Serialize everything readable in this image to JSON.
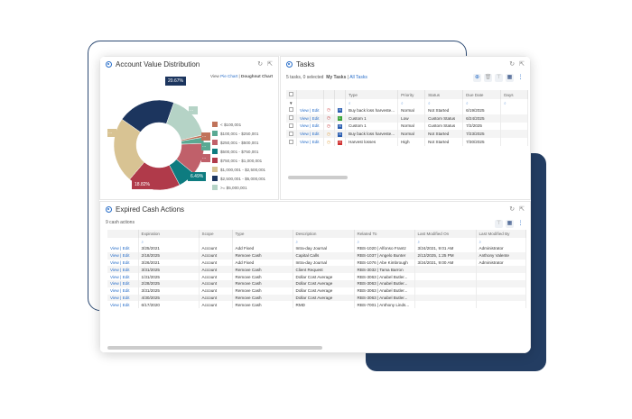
{
  "account_chart": {
    "title": "Account Value Distribution",
    "view_label": "View",
    "pie_link": "Pie Chart",
    "separator": "|",
    "donut_link": "Doughnut Chart",
    "colors": {
      "navy": "#1c355e",
      "sage": "#b5d3c6",
      "brown": "#c0735a",
      "teal": "#5aa993",
      "rose": "#c0606a",
      "dark_teal": "#0e7c80",
      "crimson": "#b03a4a",
      "tan": "#d8c393"
    },
    "labels": {
      "top": "20.67%",
      "teal": "6.49%",
      "crimson": "18.82%",
      "small": "..."
    }
  },
  "chart_data": {
    "type": "pie",
    "variant": "doughnut",
    "legend": "right",
    "series": [
      {
        "name": "< $100,001",
        "value": 0.8,
        "color": "#c0735a"
      },
      {
        "name": "$100,001 - $250,001",
        "value": 2.2,
        "color": "#5aa993"
      },
      {
        "name": "$250,001 - $500,001",
        "value": 11.5,
        "color": "#c0606a"
      },
      {
        "name": "$500,001 - $750,001",
        "value": 6.49,
        "color": "#0e7c80"
      },
      {
        "name": "$750,001 - $1,000,001",
        "value": 18.82,
        "color": "#b03a4a"
      },
      {
        "name": "$1,000,001 - $2,500,001",
        "value": 23.5,
        "color": "#d8c393"
      },
      {
        "name": "$2,500,001 - $5,000,001",
        "value": 20.67,
        "color": "#1c355e"
      },
      {
        "name": ">= $5,000,001",
        "value": 16.02,
        "color": "#b5d3c6"
      }
    ]
  },
  "tasks": {
    "title": "Tasks",
    "summary": "5 tasks, 0 selected",
    "my_tasks": "My Tasks",
    "separator": "|",
    "all_tasks": "All Tasks",
    "columns": [
      "Type",
      "Priority",
      "Status",
      "Due Date",
      "Days"
    ],
    "rows": [
      {
        "action": "View | Edit",
        "type": "Buy back loss harveste...",
        "priority": "Normal",
        "status": "Not Started",
        "due": "6/19/2025",
        "badge": "N",
        "badge_color": "#2a5db0",
        "icon_color": "#d04040"
      },
      {
        "action": "View | Edit",
        "type": "Custom 1",
        "priority": "Low",
        "status": "Custom Status",
        "due": "6/24/2025",
        "badge": "L",
        "badge_color": "#3aa53a",
        "icon_color": "#c03030"
      },
      {
        "action": "View | Edit",
        "type": "Custom 1",
        "priority": "Normal",
        "status": "Custom Status",
        "due": "7/2/2025",
        "badge": "N",
        "badge_color": "#2a5db0",
        "icon_color": "#c03030"
      },
      {
        "action": "View | Edit",
        "type": "Buy back loss harveste...",
        "priority": "Normal",
        "status": "Not Started",
        "due": "7/23/2025",
        "badge": "N",
        "badge_color": "#2a5db0",
        "icon_color": "#e0a040"
      },
      {
        "action": "View | Edit",
        "type": "Harvest losses",
        "priority": "High",
        "status": "Not Started",
        "due": "7/30/2025",
        "badge": "H",
        "badge_color": "#d03030",
        "icon_color": "#e0a040"
      }
    ]
  },
  "cash": {
    "title": "Expired Cash Actions",
    "summary": "9 cash actions",
    "columns": [
      "Expiration",
      "Scope",
      "Type",
      "Description",
      "Related To",
      "Last Modified On",
      "Last Modified By"
    ],
    "rows": [
      [
        "View | Edit",
        "3/25/2021",
        "Account",
        "Add Fixed",
        "Intra-day Journal",
        "RBS-1020 | Alfonso Frantz",
        "3/24/2021, 9:01 AM",
        "Administrator"
      ],
      [
        "View | Edit",
        "2/18/2025",
        "Account",
        "Remove Cash",
        "Capital Calls",
        "RBS-1037 | Angelo Bunter",
        "2/13/2025, 1:25 PM",
        "Anthony Valente"
      ],
      [
        "View | Edit",
        "3/26/2021",
        "Account",
        "Add Fixed",
        "Intra-day Journal",
        "RBS-1076 | Abe Kimbrough",
        "3/24/2021, 9:00 AM",
        "Administrator"
      ],
      [
        "View | Edit",
        "3/31/2025",
        "Account",
        "Remove Cash",
        "Client Request",
        "RBS-3032 | Tama Barron",
        "",
        ""
      ],
      [
        "View | Edit",
        "1/31/2025",
        "Account",
        "Remove Cash",
        "Dollar Cost Average",
        "RBS-3063 | Anabel Butler...",
        "",
        ""
      ],
      [
        "View | Edit",
        "2/28/2025",
        "Account",
        "Remove Cash",
        "Dollar Cost Average",
        "RBS-3063 | Anabel Butler...",
        "",
        ""
      ],
      [
        "View | Edit",
        "3/31/2025",
        "Account",
        "Remove Cash",
        "Dollar Cost Average",
        "RBS-3063 | Anabel Butler...",
        "",
        ""
      ],
      [
        "View | Edit",
        "4/30/2025",
        "Account",
        "Remove Cash",
        "Dollar Cost Average",
        "RBS-3063 | Anabel Butler...",
        "",
        ""
      ],
      [
        "View | Edit",
        "6/17/2020",
        "Account",
        "Remove Cash",
        "RMD",
        "RBS-7001 | Anthony Linds...",
        "",
        ""
      ]
    ]
  }
}
